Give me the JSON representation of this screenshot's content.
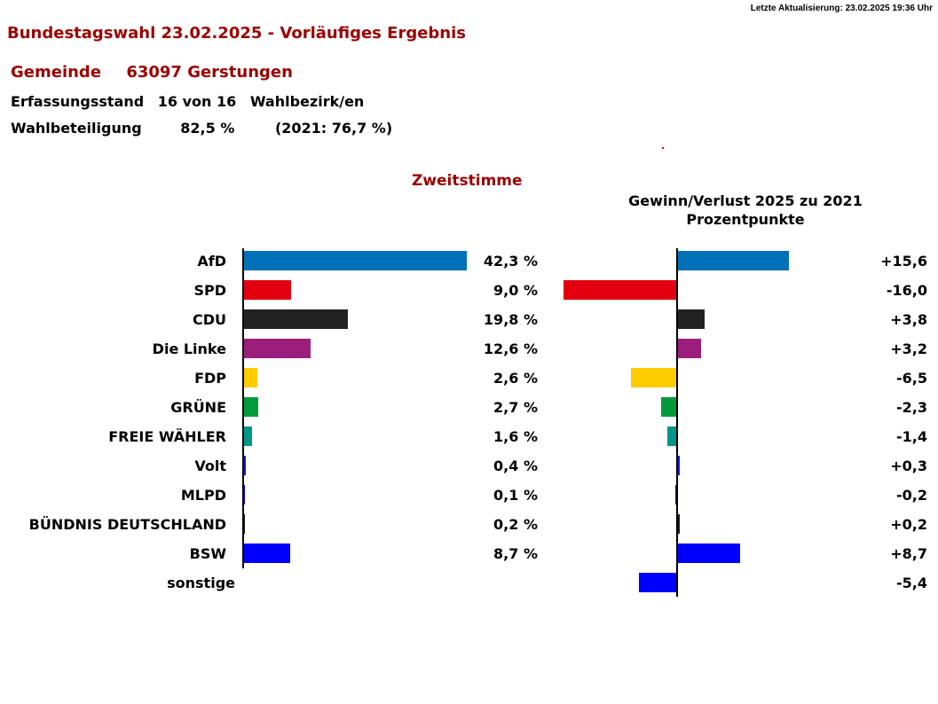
{
  "header": {
    "update": "Letzte Aktualisierung:  23.02.2025 19:36 Uhr",
    "title": "Bundestagswahl 23.02.2025 - Vorläufiges Ergebnis",
    "gemeinde_label": "Gemeinde",
    "gemeinde": "63097 Gerstungen",
    "erfassung_label": "Erfassungsstand",
    "erfassung": "16 von 16",
    "erfassung_unit": "Wahlbezirk/en",
    "beteiligung_label": "Wahlbeteiligung",
    "beteiligung": "82,5 %",
    "beteiligung_prev": "(2021: 76,7 %)"
  },
  "chart_data": [
    {
      "type": "bar",
      "title": "Zweitstimme",
      "orientation": "horizontal",
      "categories": [
        "AfD",
        "SPD",
        "CDU",
        "Die Linke",
        "FDP",
        "GRÜNE",
        "FREIE WÄHLER",
        "Volt",
        "MLPD",
        "BÜNDNIS DEUTSCHLAND",
        "BSW",
        "sonstige"
      ],
      "values": [
        42.3,
        9.0,
        19.8,
        12.6,
        2.6,
        2.7,
        1.6,
        0.4,
        0.1,
        0.2,
        8.7,
        null
      ],
      "labels": [
        "42,3 %",
        "9,0 %",
        "19,8 %",
        "12,6 %",
        "2,6 %",
        "2,7 %",
        "1,6 %",
        "0,4 %",
        "0,1 %",
        "0,2 %",
        "8,7 %",
        ""
      ],
      "colors": [
        "#0070b8",
        "#e3000f",
        "#222222",
        "#9b1d7c",
        "#ffcc00",
        "#009a3d",
        "#00968a",
        "#1a1acc",
        "#0000ff",
        "#1a1a1a",
        "#0000ff",
        "#0000ff"
      ]
    },
    {
      "type": "bar",
      "title": "Gewinn/Verlust 2025 zu 2021",
      "subtitle": "Prozentpunkte",
      "orientation": "horizontal",
      "categories": [
        "AfD",
        "SPD",
        "CDU",
        "Die Linke",
        "FDP",
        "GRÜNE",
        "FREIE WÄHLER",
        "Volt",
        "MLPD",
        "BÜNDNIS DEUTSCHLAND",
        "BSW",
        "sonstige"
      ],
      "values": [
        15.6,
        -16.0,
        3.8,
        3.2,
        -6.5,
        -2.3,
        -1.4,
        0.3,
        -0.2,
        0.2,
        8.7,
        -5.4
      ],
      "labels": [
        "+15,6",
        "-16,0",
        "+3,8",
        "+3,2",
        "-6,5",
        "-2,3",
        "-1,4",
        "+0,3",
        "-0,2",
        "+0,2",
        "+8,7",
        "-5,4"
      ]
    }
  ]
}
